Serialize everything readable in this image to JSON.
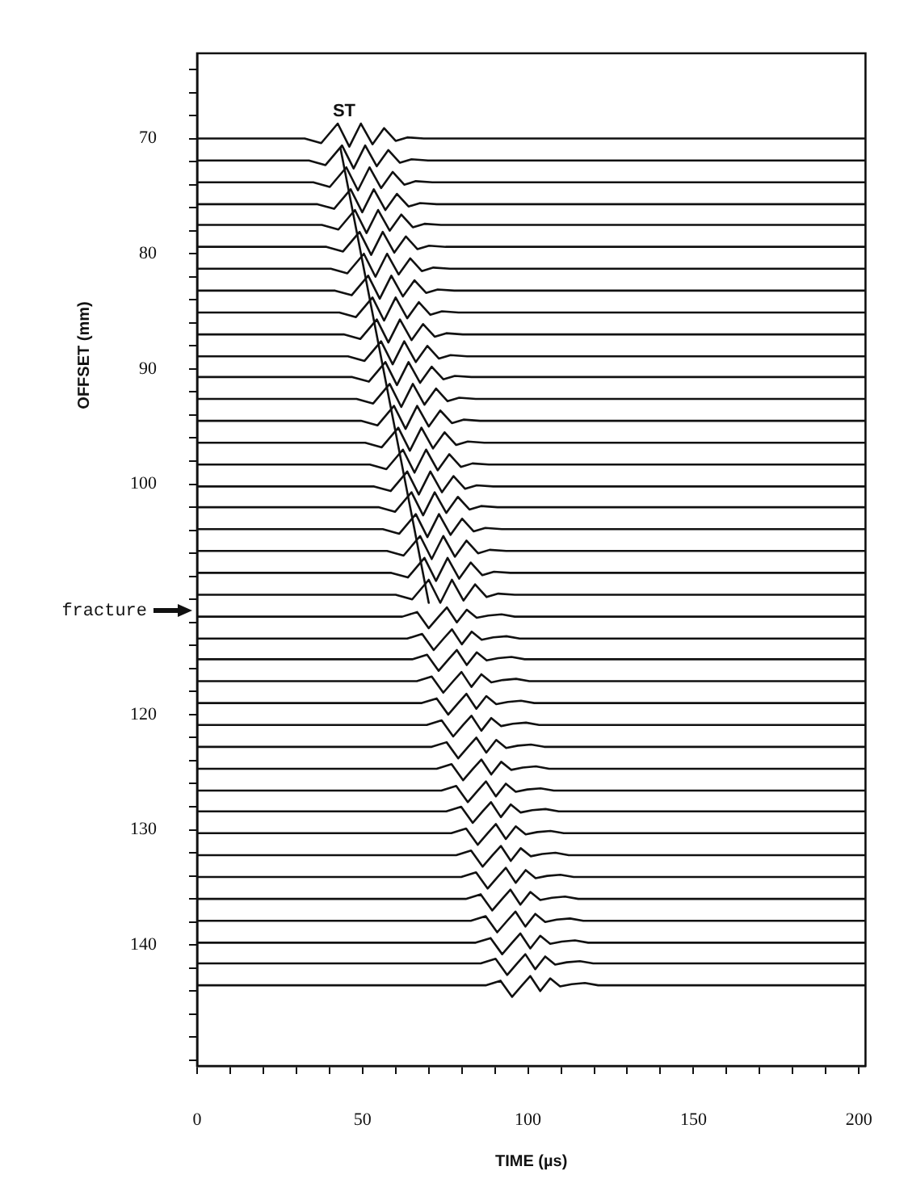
{
  "chart_data": {
    "type": "line",
    "xlabel": "TIME (µs)",
    "ylabel": "OFFSET (mm)",
    "xlim": [
      0,
      202
    ],
    "ylim": [
      150.5,
      62.6
    ],
    "xticks": [
      0,
      {
        "value": 10,
        "label": null
      },
      {
        "value": 20,
        "label": null
      },
      {
        "value": 30,
        "label": null
      },
      {
        "value": 40,
        "label": null
      },
      50,
      {
        "value": 60,
        "label": null
      },
      {
        "value": 70,
        "label": null
      },
      {
        "value": 80,
        "label": null
      },
      {
        "value": 90,
        "label": null
      },
      100,
      {
        "value": 110,
        "label": null
      },
      {
        "value": 120,
        "label": null
      },
      {
        "value": 130,
        "label": null
      },
      {
        "value": 140,
        "label": null
      },
      150,
      {
        "value": 160,
        "label": null
      },
      {
        "value": 170,
        "label": null
      },
      {
        "value": 180,
        "label": null
      },
      {
        "value": 190,
        "label": null
      },
      200
    ],
    "yticks": [
      {
        "value": 64,
        "label": null
      },
      {
        "value": 66,
        "label": null
      },
      {
        "value": 68,
        "label": null
      },
      70,
      {
        "value": 72,
        "label": null
      },
      {
        "value": 74,
        "label": null
      },
      {
        "value": 76,
        "label": null
      },
      {
        "value": 78,
        "label": null
      },
      80,
      {
        "value": 82,
        "label": null
      },
      {
        "value": 84,
        "label": null
      },
      {
        "value": 86,
        "label": null
      },
      {
        "value": 88,
        "label": null
      },
      90,
      {
        "value": 92,
        "label": null
      },
      {
        "value": 94,
        "label": null
      },
      {
        "value": 96,
        "label": null
      },
      {
        "value": 98,
        "label": null
      },
      100,
      {
        "value": 102,
        "label": null
      },
      {
        "value": 104,
        "label": null
      },
      {
        "value": 106,
        "label": null
      },
      {
        "value": 108,
        "label": null
      },
      {
        "value": 110,
        "label": null
      },
      {
        "value": 112,
        "label": null
      },
      {
        "value": 114,
        "label": null
      },
      {
        "value": 116,
        "label": null
      },
      {
        "value": 118,
        "label": null
      },
      120,
      {
        "value": 122,
        "label": null
      },
      {
        "value": 124,
        "label": null
      },
      {
        "value": 126,
        "label": null
      },
      {
        "value": 128,
        "label": null
      },
      130,
      {
        "value": 132,
        "label": null
      },
      {
        "value": 134,
        "label": null
      },
      {
        "value": 136,
        "label": null
      },
      {
        "value": 138,
        "label": null
      },
      140,
      {
        "value": 142,
        "label": null
      },
      {
        "value": 144,
        "label": null
      },
      {
        "value": 146,
        "label": null
      },
      {
        "value": 148,
        "label": null
      },
      {
        "value": 150,
        "label": null
      }
    ],
    "grid": false,
    "legend": false,
    "marker": "none",
    "line_style": "solid",
    "annotations": [
      "ST",
      "fracture"
    ],
    "series": [
      {
        "color": "#111111",
        "x": [
          0,
          32.5,
          37.5,
          42.5,
          46,
          49.5,
          53,
          56.5,
          60,
          63.5,
          68.5,
          202
        ],
        "values": [
          70,
          70,
          70.4,
          68.7,
          70.7,
          68.7,
          70.5,
          69.1,
          70.2,
          69.9,
          70,
          70
        ]
      },
      {
        "color": "#111111",
        "x": [
          0,
          33.8,
          38.8,
          43.8,
          47.3,
          50.8,
          54.3,
          57.8,
          61.3,
          64.8,
          69.8,
          202
        ],
        "values": [
          71.9,
          71.9,
          72.3,
          70.6,
          72.6,
          70.6,
          72.4,
          71,
          72.1,
          71.8,
          71.9,
          71.9
        ]
      },
      {
        "color": "#111111",
        "x": [
          0,
          35.1,
          40.1,
          45.1,
          48.6,
          52.1,
          55.6,
          59.1,
          62.6,
          66.1,
          71.1,
          202
        ],
        "values": [
          73.8,
          73.8,
          74.2,
          72.5,
          74.5,
          72.5,
          74.3,
          72.9,
          74,
          73.7,
          73.8,
          73.8
        ]
      },
      {
        "color": "#111111",
        "x": [
          0,
          36.4,
          41.4,
          46.4,
          49.9,
          53.4,
          56.9,
          60.4,
          63.9,
          67.4,
          72.4,
          202
        ],
        "values": [
          75.7,
          75.7,
          76.1,
          74.4,
          76.4,
          74.4,
          76.2,
          74.8,
          75.9,
          75.6,
          75.7,
          75.7
        ]
      },
      {
        "color": "#111111",
        "x": [
          0,
          37.7,
          42.7,
          47.7,
          51.2,
          54.7,
          58.2,
          61.7,
          65.2,
          68.7,
          73.7,
          202
        ],
        "values": [
          77.5,
          77.5,
          77.9,
          76.2,
          78.2,
          76.2,
          78,
          76.6,
          77.7,
          77.4,
          77.5,
          77.5
        ]
      },
      {
        "color": "#111111",
        "x": [
          0,
          39.1,
          44.1,
          49.1,
          52.6,
          56.1,
          59.6,
          63.1,
          66.6,
          70.1,
          75.1,
          202
        ],
        "values": [
          79.4,
          79.4,
          79.8,
          78.1,
          80.1,
          78.1,
          79.9,
          78.5,
          79.6,
          79.3,
          79.4,
          79.4
        ]
      },
      {
        "color": "#111111",
        "x": [
          0,
          40.4,
          45.4,
          50.4,
          53.9,
          57.4,
          60.9,
          64.4,
          67.9,
          71.4,
          76.4,
          202
        ],
        "values": [
          81.3,
          81.3,
          81.7,
          80,
          82,
          80,
          81.8,
          80.4,
          81.5,
          81.2,
          81.3,
          81.3
        ]
      },
      {
        "color": "#111111",
        "x": [
          0,
          41.7,
          46.7,
          51.7,
          55.2,
          58.7,
          62.2,
          65.7,
          69.2,
          72.7,
          77.7,
          202
        ],
        "values": [
          83.2,
          83.2,
          83.6,
          81.9,
          83.9,
          81.9,
          83.7,
          82.3,
          83.4,
          83.1,
          83.2,
          83.2
        ]
      },
      {
        "color": "#111111",
        "x": [
          0,
          43,
          48,
          53,
          56.5,
          60,
          63.5,
          67,
          70.5,
          74,
          79,
          202
        ],
        "values": [
          85.1,
          85.1,
          85.5,
          83.8,
          85.8,
          83.8,
          85.6,
          84.2,
          85.3,
          85,
          85.1,
          85.1
        ]
      },
      {
        "color": "#111111",
        "x": [
          0,
          44.3,
          49.3,
          54.3,
          57.8,
          61.3,
          64.8,
          68.3,
          71.8,
          75.3,
          80.3,
          202
        ],
        "values": [
          87,
          87,
          87.4,
          85.7,
          87.7,
          85.7,
          87.5,
          86.1,
          87.2,
          86.9,
          87,
          87
        ]
      },
      {
        "color": "#111111",
        "x": [
          0,
          45.6,
          50.6,
          55.6,
          59.1,
          62.6,
          66.1,
          69.6,
          73.1,
          76.6,
          81.6,
          202
        ],
        "values": [
          88.9,
          88.9,
          89.3,
          87.6,
          89.6,
          87.6,
          89.4,
          88,
          89.1,
          88.8,
          88.9,
          88.9
        ]
      },
      {
        "color": "#111111",
        "x": [
          0,
          46.9,
          51.9,
          56.9,
          60.4,
          63.9,
          67.4,
          70.9,
          74.4,
          77.9,
          82.9,
          202
        ],
        "values": [
          90.7,
          90.7,
          91.1,
          89.4,
          91.4,
          89.4,
          91.2,
          89.8,
          90.9,
          90.6,
          90.7,
          90.7
        ]
      },
      {
        "color": "#111111",
        "x": [
          0,
          48.2,
          53.2,
          58.2,
          61.7,
          65.2,
          68.7,
          72.2,
          75.7,
          79.2,
          84.2,
          202
        ],
        "values": [
          92.6,
          92.6,
          93,
          91.3,
          93.3,
          91.3,
          93.1,
          91.7,
          92.8,
          92.5,
          92.6,
          92.6
        ]
      },
      {
        "color": "#111111",
        "x": [
          0,
          49.5,
          54.5,
          59.5,
          63,
          66.5,
          70,
          73.5,
          77,
          80.5,
          85.5,
          202
        ],
        "values": [
          94.5,
          94.5,
          94.9,
          93.2,
          95.2,
          93.2,
          95,
          93.6,
          94.7,
          94.4,
          94.5,
          94.5
        ]
      },
      {
        "color": "#111111",
        "x": [
          0,
          50.8,
          55.8,
          60.8,
          64.3,
          67.8,
          71.3,
          74.8,
          78.3,
          81.8,
          86.8,
          202
        ],
        "values": [
          96.4,
          96.4,
          96.8,
          95.1,
          97.1,
          95.1,
          96.9,
          95.5,
          96.6,
          96.3,
          96.4,
          96.4
        ]
      },
      {
        "color": "#111111",
        "x": [
          0,
          52.2,
          57.2,
          62.2,
          65.7,
          69.2,
          72.7,
          76.2,
          79.7,
          83.2,
          88.2,
          202
        ],
        "values": [
          98.3,
          98.3,
          98.7,
          97,
          99,
          97,
          98.8,
          97.4,
          98.5,
          98.2,
          98.3,
          98.3
        ]
      },
      {
        "color": "#111111",
        "x": [
          0,
          53.5,
          58.5,
          63.5,
          67,
          70.5,
          74,
          77.5,
          81,
          84.5,
          89.5,
          202
        ],
        "values": [
          100.2,
          100.2,
          100.6,
          98.9,
          100.9,
          98.9,
          100.7,
          99.3,
          100.4,
          100.1,
          100.2,
          100.2
        ]
      },
      {
        "color": "#111111",
        "x": [
          0,
          54.8,
          59.8,
          64.8,
          68.3,
          71.8,
          75.3,
          78.8,
          82.3,
          85.8,
          90.8,
          202
        ],
        "values": [
          102,
          102,
          102.4,
          100.7,
          102.7,
          100.7,
          102.5,
          101.1,
          102.2,
          101.9,
          102,
          102
        ]
      },
      {
        "color": "#111111",
        "x": [
          0,
          56.1,
          61.1,
          66.1,
          69.6,
          73.1,
          76.6,
          80.1,
          83.6,
          87.1,
          92.1,
          202
        ],
        "values": [
          103.9,
          103.9,
          104.3,
          102.6,
          104.6,
          102.6,
          104.4,
          103,
          104.1,
          103.8,
          103.9,
          103.9
        ]
      },
      {
        "color": "#111111",
        "x": [
          0,
          57.4,
          62.4,
          67.4,
          70.9,
          74.4,
          77.9,
          81.4,
          84.9,
          88.4,
          93.4,
          202
        ],
        "values": [
          105.8,
          105.8,
          106.2,
          104.5,
          106.5,
          104.5,
          106.3,
          104.9,
          106,
          105.7,
          105.8,
          105.8
        ]
      },
      {
        "color": "#111111",
        "x": [
          0,
          58.7,
          63.7,
          68.7,
          72.2,
          75.7,
          79.2,
          82.7,
          86.2,
          89.7,
          94.7,
          202
        ],
        "values": [
          107.7,
          107.7,
          108.1,
          106.4,
          108.4,
          106.4,
          108.2,
          106.8,
          107.9,
          107.6,
          107.7,
          107.7
        ]
      },
      {
        "color": "#111111",
        "x": [
          0,
          60,
          65,
          70,
          73.5,
          77,
          80.5,
          84,
          87.5,
          91,
          96,
          202
        ],
        "values": [
          109.6,
          109.6,
          110,
          108.3,
          110.3,
          108.3,
          110.1,
          108.7,
          109.8,
          109.5,
          109.6,
          109.6
        ]
      },
      {
        "color": "#111111",
        "x": [
          0,
          62,
          66.5,
          70,
          73,
          75.5,
          78.5,
          81.5,
          84.5,
          88,
          92,
          96,
          202
        ],
        "values": [
          111.5,
          111.5,
          111.1,
          112.5,
          111.5,
          110.7,
          112,
          110.9,
          111.6,
          111.4,
          111.3,
          111.5,
          111.5
        ]
      },
      {
        "color": "#111111",
        "x": [
          0,
          63.5,
          68,
          71.5,
          74.5,
          77,
          80,
          83,
          86,
          89.5,
          93.5,
          97.5,
          202
        ],
        "values": [
          113.4,
          113.4,
          113,
          114.4,
          113.4,
          112.6,
          113.9,
          112.8,
          113.5,
          113.3,
          113.2,
          113.4,
          113.4
        ]
      },
      {
        "color": "#111111",
        "x": [
          0,
          65,
          69.5,
          73,
          76,
          78.5,
          81.5,
          84.5,
          87.5,
          91,
          95,
          99,
          202
        ],
        "values": [
          115.2,
          115.2,
          114.8,
          116.2,
          115.2,
          114.4,
          115.7,
          114.6,
          115.3,
          115.1,
          115,
          115.2,
          115.2
        ]
      },
      {
        "color": "#111111",
        "x": [
          0,
          66.4,
          70.9,
          74.4,
          77.4,
          79.9,
          82.9,
          85.9,
          88.9,
          92.4,
          96.4,
          100.4,
          202
        ],
        "values": [
          117.1,
          117.1,
          116.7,
          118.1,
          117.1,
          116.3,
          117.6,
          116.5,
          117.2,
          117,
          116.9,
          117.1,
          117.1
        ]
      },
      {
        "color": "#111111",
        "x": [
          0,
          67.9,
          72.4,
          75.9,
          78.9,
          81.4,
          84.4,
          87.4,
          90.4,
          93.9,
          97.9,
          101.9,
          202
        ],
        "values": [
          119,
          119,
          118.6,
          120,
          119,
          118.2,
          119.5,
          118.4,
          119.1,
          118.9,
          118.8,
          119,
          119
        ]
      },
      {
        "color": "#111111",
        "x": [
          0,
          69.4,
          73.9,
          77.4,
          80.4,
          82.9,
          85.9,
          88.9,
          91.9,
          95.4,
          99.4,
          103.4,
          202
        ],
        "values": [
          120.9,
          120.9,
          120.5,
          121.9,
          120.9,
          120.1,
          121.4,
          120.3,
          121,
          120.8,
          120.7,
          120.9,
          120.9
        ]
      },
      {
        "color": "#111111",
        "x": [
          0,
          70.9,
          75.4,
          78.9,
          81.9,
          84.4,
          87.4,
          90.4,
          93.4,
          96.9,
          100.9,
          104.9,
          202
        ],
        "values": [
          122.8,
          122.8,
          122.4,
          123.8,
          122.8,
          122,
          123.3,
          122.2,
          122.9,
          122.7,
          122.6,
          122.8,
          122.8
        ]
      },
      {
        "color": "#111111",
        "x": [
          0,
          72.4,
          76.9,
          80.4,
          83.4,
          85.9,
          88.9,
          91.9,
          94.9,
          98.4,
          102.4,
          106.4,
          202
        ],
        "values": [
          124.7,
          124.7,
          124.3,
          125.7,
          124.7,
          123.9,
          125.2,
          124.1,
          124.8,
          124.6,
          124.5,
          124.7,
          124.7
        ]
      },
      {
        "color": "#111111",
        "x": [
          0,
          73.8,
          78.3,
          81.8,
          84.8,
          87.3,
          90.3,
          93.3,
          96.3,
          99.8,
          103.8,
          107.8,
          202
        ],
        "values": [
          126.6,
          126.6,
          126.2,
          127.6,
          126.6,
          125.8,
          127.1,
          126,
          126.7,
          126.5,
          126.4,
          126.6,
          126.6
        ]
      },
      {
        "color": "#111111",
        "x": [
          0,
          75.3,
          79.8,
          83.3,
          86.3,
          88.8,
          91.8,
          94.8,
          97.8,
          101.3,
          105.3,
          109.3,
          202
        ],
        "values": [
          128.4,
          128.4,
          128,
          129.4,
          128.4,
          127.6,
          128.9,
          127.8,
          128.5,
          128.3,
          128.2,
          128.4,
          128.4
        ]
      },
      {
        "color": "#111111",
        "x": [
          0,
          76.8,
          81.3,
          84.8,
          87.8,
          90.3,
          93.3,
          96.3,
          99.3,
          102.8,
          106.8,
          110.8,
          202
        ],
        "values": [
          130.3,
          130.3,
          129.9,
          131.3,
          130.3,
          129.5,
          130.8,
          129.7,
          130.4,
          130.2,
          130.1,
          130.3,
          130.3
        ]
      },
      {
        "color": "#111111",
        "x": [
          0,
          78.3,
          82.8,
          86.3,
          89.3,
          91.8,
          94.8,
          97.8,
          100.8,
          104.3,
          108.3,
          112.3,
          202
        ],
        "values": [
          132.2,
          132.2,
          131.8,
          133.2,
          132.2,
          131.4,
          132.7,
          131.6,
          132.3,
          132.1,
          132,
          132.2,
          132.2
        ]
      },
      {
        "color": "#111111",
        "x": [
          0,
          79.8,
          84.3,
          87.8,
          90.8,
          93.3,
          96.3,
          99.3,
          102.3,
          105.8,
          109.8,
          113.8,
          202
        ],
        "values": [
          134.1,
          134.1,
          133.7,
          135.1,
          134.1,
          133.3,
          134.6,
          133.5,
          134.2,
          134,
          133.9,
          134.1,
          134.1
        ]
      },
      {
        "color": "#111111",
        "x": [
          0,
          81.2,
          85.7,
          89.2,
          92.2,
          94.7,
          97.7,
          100.7,
          103.7,
          107.2,
          111.2,
          115.2,
          202
        ],
        "values": [
          136,
          136,
          135.6,
          137,
          136,
          135.2,
          136.5,
          135.4,
          136.1,
          135.9,
          135.8,
          136,
          136
        ]
      },
      {
        "color": "#111111",
        "x": [
          0,
          82.7,
          87.2,
          90.7,
          93.7,
          96.2,
          99.2,
          102.2,
          105.2,
          108.7,
          112.7,
          116.7,
          202
        ],
        "values": [
          137.9,
          137.9,
          137.5,
          138.9,
          137.9,
          137.1,
          138.4,
          137.3,
          138,
          137.8,
          137.7,
          137.9,
          137.9
        ]
      },
      {
        "color": "#111111",
        "x": [
          0,
          84.2,
          88.7,
          92.2,
          95.2,
          97.7,
          100.7,
          103.7,
          106.7,
          110.2,
          114.2,
          118.2,
          202
        ],
        "values": [
          139.8,
          139.8,
          139.4,
          140.8,
          139.8,
          139,
          140.3,
          139.2,
          139.9,
          139.7,
          139.6,
          139.8,
          139.8
        ]
      },
      {
        "color": "#111111",
        "x": [
          0,
          85.7,
          90.2,
          93.7,
          96.7,
          99.2,
          102.2,
          105.2,
          108.2,
          111.7,
          115.7,
          119.7,
          202
        ],
        "values": [
          141.6,
          141.6,
          141.2,
          142.6,
          141.6,
          140.8,
          142.1,
          141,
          141.7,
          141.5,
          141.4,
          141.6,
          141.6
        ]
      },
      {
        "color": "#111111",
        "x": [
          0,
          87.2,
          91.7,
          95.2,
          98.2,
          100.7,
          103.7,
          106.7,
          109.7,
          113.2,
          117.2,
          121.2,
          202
        ],
        "values": [
          143.5,
          143.5,
          143.1,
          144.5,
          143.5,
          142.7,
          144,
          142.9,
          143.6,
          143.4,
          143.3,
          143.5,
          143.5
        ]
      },
      {
        "color": "#111111",
        "x": [
          43.3,
          70
        ],
        "values": [
          70.8,
          110.3
        ]
      }
    ]
  }
}
